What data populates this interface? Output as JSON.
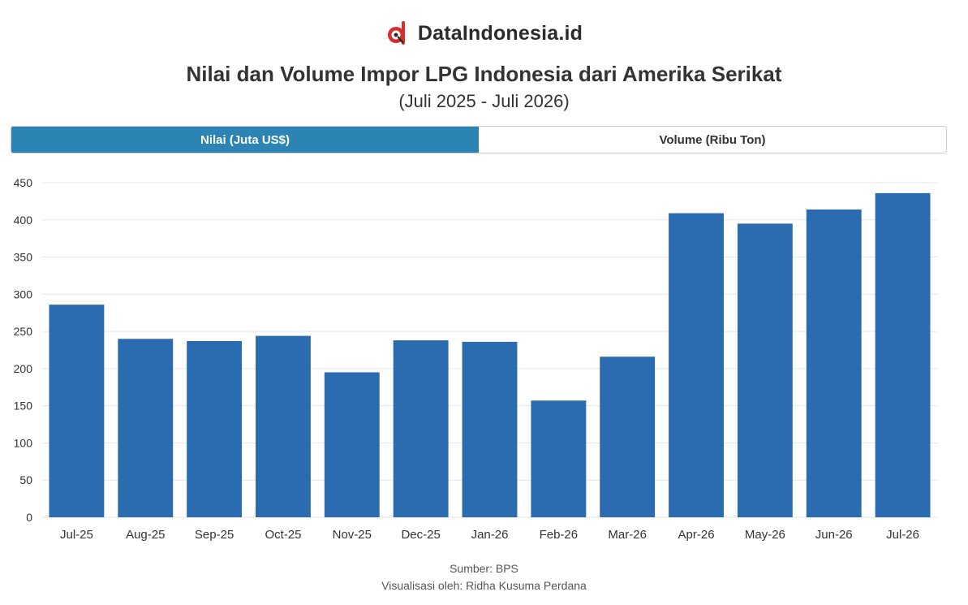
{
  "brand": {
    "name": "DataIndonesia.id",
    "icon": "dataindonesia-logo-icon"
  },
  "header": {
    "title": "Nilai dan Volume Impor LPG Indonesia dari Amerika Serikat",
    "subtitle": "(Juli 2025 - Juli 2026)"
  },
  "tabs": [
    {
      "label": "Nilai (Juta US$)",
      "active": true
    },
    {
      "label": "Volume (Ribu Ton)",
      "active": false
    }
  ],
  "colors": {
    "bar": "#2b6cb0",
    "tab_active": "#2b84b3",
    "grid": "#e6e6e6",
    "brand_red": "#d62d2d"
  },
  "chart_data": {
    "type": "bar",
    "categories": [
      "Jul-25",
      "Aug-25",
      "Sep-25",
      "Oct-25",
      "Nov-25",
      "Dec-25",
      "Jan-26",
      "Feb-26",
      "Mar-26",
      "Apr-26",
      "May-26",
      "Jun-26",
      "Jul-26"
    ],
    "values": [
      286,
      240,
      237,
      244,
      195,
      238,
      236,
      157,
      216,
      409,
      395,
      414,
      436
    ],
    "ylim": [
      0,
      450
    ],
    "yticks": [
      0,
      50,
      100,
      150,
      200,
      250,
      300,
      350,
      400,
      450
    ],
    "grid": true,
    "xlabel": "",
    "ylabel": ""
  },
  "footer": {
    "source": "Sumber: BPS",
    "credit": "Visualisasi oleh: Ridha Kusuma Perdana"
  }
}
